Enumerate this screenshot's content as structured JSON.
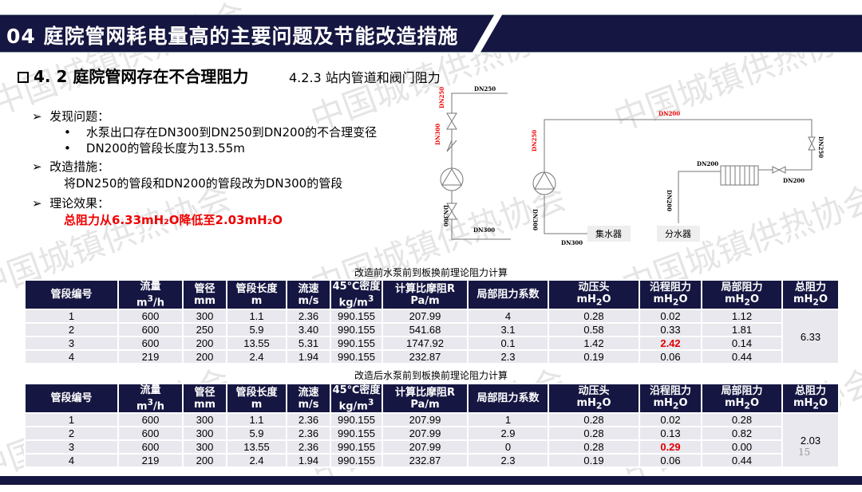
{
  "header": {
    "title": "04  庭院管网耗电量高的主要问题及节能改造措施"
  },
  "section": {
    "title": "4. 2  庭院管网存在不合理阻力",
    "subtitle": "4.2.3 站内管道和阀门阻力"
  },
  "bullets": {
    "problem_label": "发现问题：",
    "problem_items": [
      "水泵出口存在DN300到DN250到DN200的不合理变径",
      "DN200的管段长度为13.55m"
    ],
    "fix_label": "改造措施：",
    "fix_text": "将DN250的管段和DN200的管段改为DN300的管段",
    "effect_label": "理论效果：",
    "effect_text": "总阻力从6.33mH₂O降低至2.03mH₂O"
  },
  "diagram": {
    "left": {
      "top": "DN250",
      "v1": "DN250",
      "v2": "DN300",
      "v3": "DN300",
      "bottom": "DN300"
    },
    "right": {
      "top": "DN200",
      "left_v": "DN250",
      "left_v2": "DN300",
      "bottom": "DN300",
      "right_v": "DN250",
      "hx_in": "DN200",
      "valve": "DN200",
      "branch_v": "DN200",
      "collector": "集水器",
      "distributor": "分水器"
    }
  },
  "columns": [
    "管段编号",
    "流量\nm³/h",
    "管径\nmm",
    "管段长度\nm",
    "流速\nm/s",
    "45℃密度\nkg/m³",
    "计算比摩阻R\nPa/m",
    "局部阻力系数",
    "动压头\nmH₂O",
    "沿程阻力\nmH₂O",
    "局部阻力\nmH₂O",
    "总阻力\nmH₂O"
  ],
  "table_before": {
    "caption": "改造前水泵前到板换前理论阻力计算",
    "total": "6.33",
    "highlight_color": "#e00000",
    "rows": [
      [
        "1",
        "600",
        "300",
        "1.1",
        "2.36",
        "990.155",
        "207.99",
        "4",
        "0.28",
        "0.02",
        "1.12"
      ],
      [
        "2",
        "600",
        "250",
        "5.9",
        "3.40",
        "990.155",
        "541.68",
        "3.1",
        "0.58",
        "0.33",
        "1.81"
      ],
      [
        "3",
        "600",
        "200",
        "13.55",
        "5.31",
        "990.155",
        "1747.92",
        "0.1",
        "1.42",
        "2.42",
        "0.14"
      ],
      [
        "4",
        "219",
        "200",
        "2.4",
        "1.94",
        "990.155",
        "232.87",
        "2.3",
        "0.19",
        "0.06",
        "0.44"
      ]
    ]
  },
  "table_after": {
    "caption": "改造后水泵前到板换前理论阻力计算",
    "total": "2.03",
    "rows": [
      [
        "1",
        "600",
        "300",
        "1.1",
        "2.36",
        "990.155",
        "207.99",
        "1",
        "0.28",
        "0.02",
        "0.28"
      ],
      [
        "2",
        "600",
        "300",
        "5.9",
        "2.36",
        "990.155",
        "207.99",
        "2.9",
        "0.28",
        "0.13",
        "0.82"
      ],
      [
        "3",
        "600",
        "300",
        "13.55",
        "2.36",
        "990.155",
        "207.99",
        "0",
        "0.28",
        "0.29",
        "0.00"
      ],
      [
        "4",
        "219",
        "200",
        "2.4",
        "1.94",
        "990.155",
        "232.87",
        "2.3",
        "0.19",
        "0.06",
        "0.44"
      ]
    ]
  },
  "watermark": "中国城镇供热协会",
  "page_number": "15",
  "colors": {
    "navy": "#161642",
    "red": "#e00000"
  }
}
